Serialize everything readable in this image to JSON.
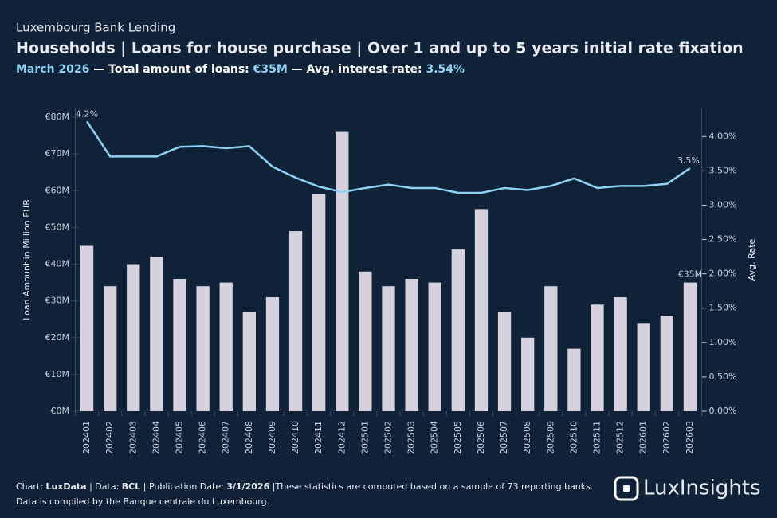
{
  "header": {
    "brand": "Luxembourg Bank Lending",
    "subtitle": [
      {
        "text": "March 2026",
        "accent": true
      },
      {
        "text": " — Total amount of loans: ",
        "accent": false
      },
      {
        "text": "€35M",
        "accent": true
      },
      {
        "text": " — Avg. interest rate: ",
        "accent": false
      },
      {
        "text": "3.54%",
        "accent": true
      }
    ]
  },
  "chart_data": {
    "type": "combo",
    "title": "Households | Loans for house purchase | Over 1 and up to 5 years initial rate fixation",
    "categories": [
      "202401",
      "202402",
      "202403",
      "202404",
      "202405",
      "202406",
      "202407",
      "202408",
      "202409",
      "202410",
      "202411",
      "202412",
      "202501",
      "202502",
      "202503",
      "202504",
      "202505",
      "202506",
      "202507",
      "202508",
      "202509",
      "202510",
      "202511",
      "202512",
      "202601",
      "202602",
      "202603"
    ],
    "series": [
      {
        "type": "bar",
        "color": "#d5d2de",
        "values": [
          45,
          34,
          40,
          42,
          36,
          34,
          35,
          27,
          31,
          49,
          59,
          76,
          38,
          34,
          36,
          35,
          44,
          55,
          27,
          20,
          34,
          17,
          29,
          31,
          24,
          26,
          35
        ],
        "value_labels": [
          null,
          null,
          null,
          null,
          null,
          null,
          null,
          null,
          null,
          null,
          null,
          null,
          null,
          null,
          null,
          null,
          null,
          null,
          null,
          null,
          null,
          null,
          null,
          null,
          null,
          null,
          "€35M"
        ]
      },
      {
        "type": "line",
        "axis": "y2",
        "color": "#8ed3f4",
        "values": [
          4.22,
          3.71,
          3.71,
          3.71,
          3.85,
          3.86,
          3.83,
          3.86,
          3.56,
          3.4,
          3.27,
          3.19,
          3.25,
          3.3,
          3.25,
          3.25,
          3.18,
          3.18,
          3.25,
          3.22,
          3.28,
          3.39,
          3.25,
          3.28,
          3.28,
          3.31,
          3.54
        ],
        "value_labels": [
          "4.2%",
          null,
          null,
          null,
          null,
          null,
          null,
          null,
          null,
          null,
          null,
          null,
          null,
          null,
          null,
          null,
          null,
          null,
          null,
          null,
          null,
          null,
          null,
          null,
          null,
          null,
          "3.5%"
        ]
      }
    ],
    "ylabel": "Loan Amount in Million EUR",
    "y2label": "Avg. Rate",
    "ylim": [
      0,
      82.4
    ],
    "yticks": [
      {
        "value": 0,
        "label": "€0M"
      },
      {
        "value": 10,
        "label": "€10M"
      },
      {
        "value": 20,
        "label": "€20M"
      },
      {
        "value": 30,
        "label": "€30M"
      },
      {
        "value": 40,
        "label": "€40M"
      },
      {
        "value": 50,
        "label": "€50M"
      },
      {
        "value": 60,
        "label": "€60M"
      },
      {
        "value": 70,
        "label": "€70M"
      },
      {
        "value": 80,
        "label": "€80M"
      }
    ],
    "y2lim": [
      0,
      4.41
    ],
    "y2ticks": [
      {
        "value": 0,
        "label": "0.00%"
      },
      {
        "value": 0.5,
        "label": "0.50%"
      },
      {
        "value": 1,
        "label": "1.00%"
      },
      {
        "value": 1.5,
        "label": "1.50%"
      },
      {
        "value": 2,
        "label": "2.00%"
      },
      {
        "value": 2.5,
        "label": "2.50%"
      },
      {
        "value": 3,
        "label": "3.00%"
      },
      {
        "value": 3.5,
        "label": "3.50%"
      },
      {
        "value": 4,
        "label": "4.00%"
      }
    ],
    "grid": true
  },
  "footer": {
    "lines": [
      [
        {
          "text": "Chart: ",
          "bold": false
        },
        {
          "text": "LuxData",
          "bold": true
        },
        {
          "text": " | Data: ",
          "bold": false
        },
        {
          "text": "BCL",
          "bold": true
        },
        {
          "text": " | Publication Date: ",
          "bold": false
        },
        {
          "text": "3/1/2026",
          "bold": true
        },
        {
          "text": " |These statistics are computed based on a sample of 73 reporting banks.",
          "bold": false
        }
      ],
      [
        {
          "text": "Data is compiled by the Banque centrale du Luxembourg.",
          "bold": false
        }
      ]
    ],
    "logo": "LuxInsights"
  }
}
